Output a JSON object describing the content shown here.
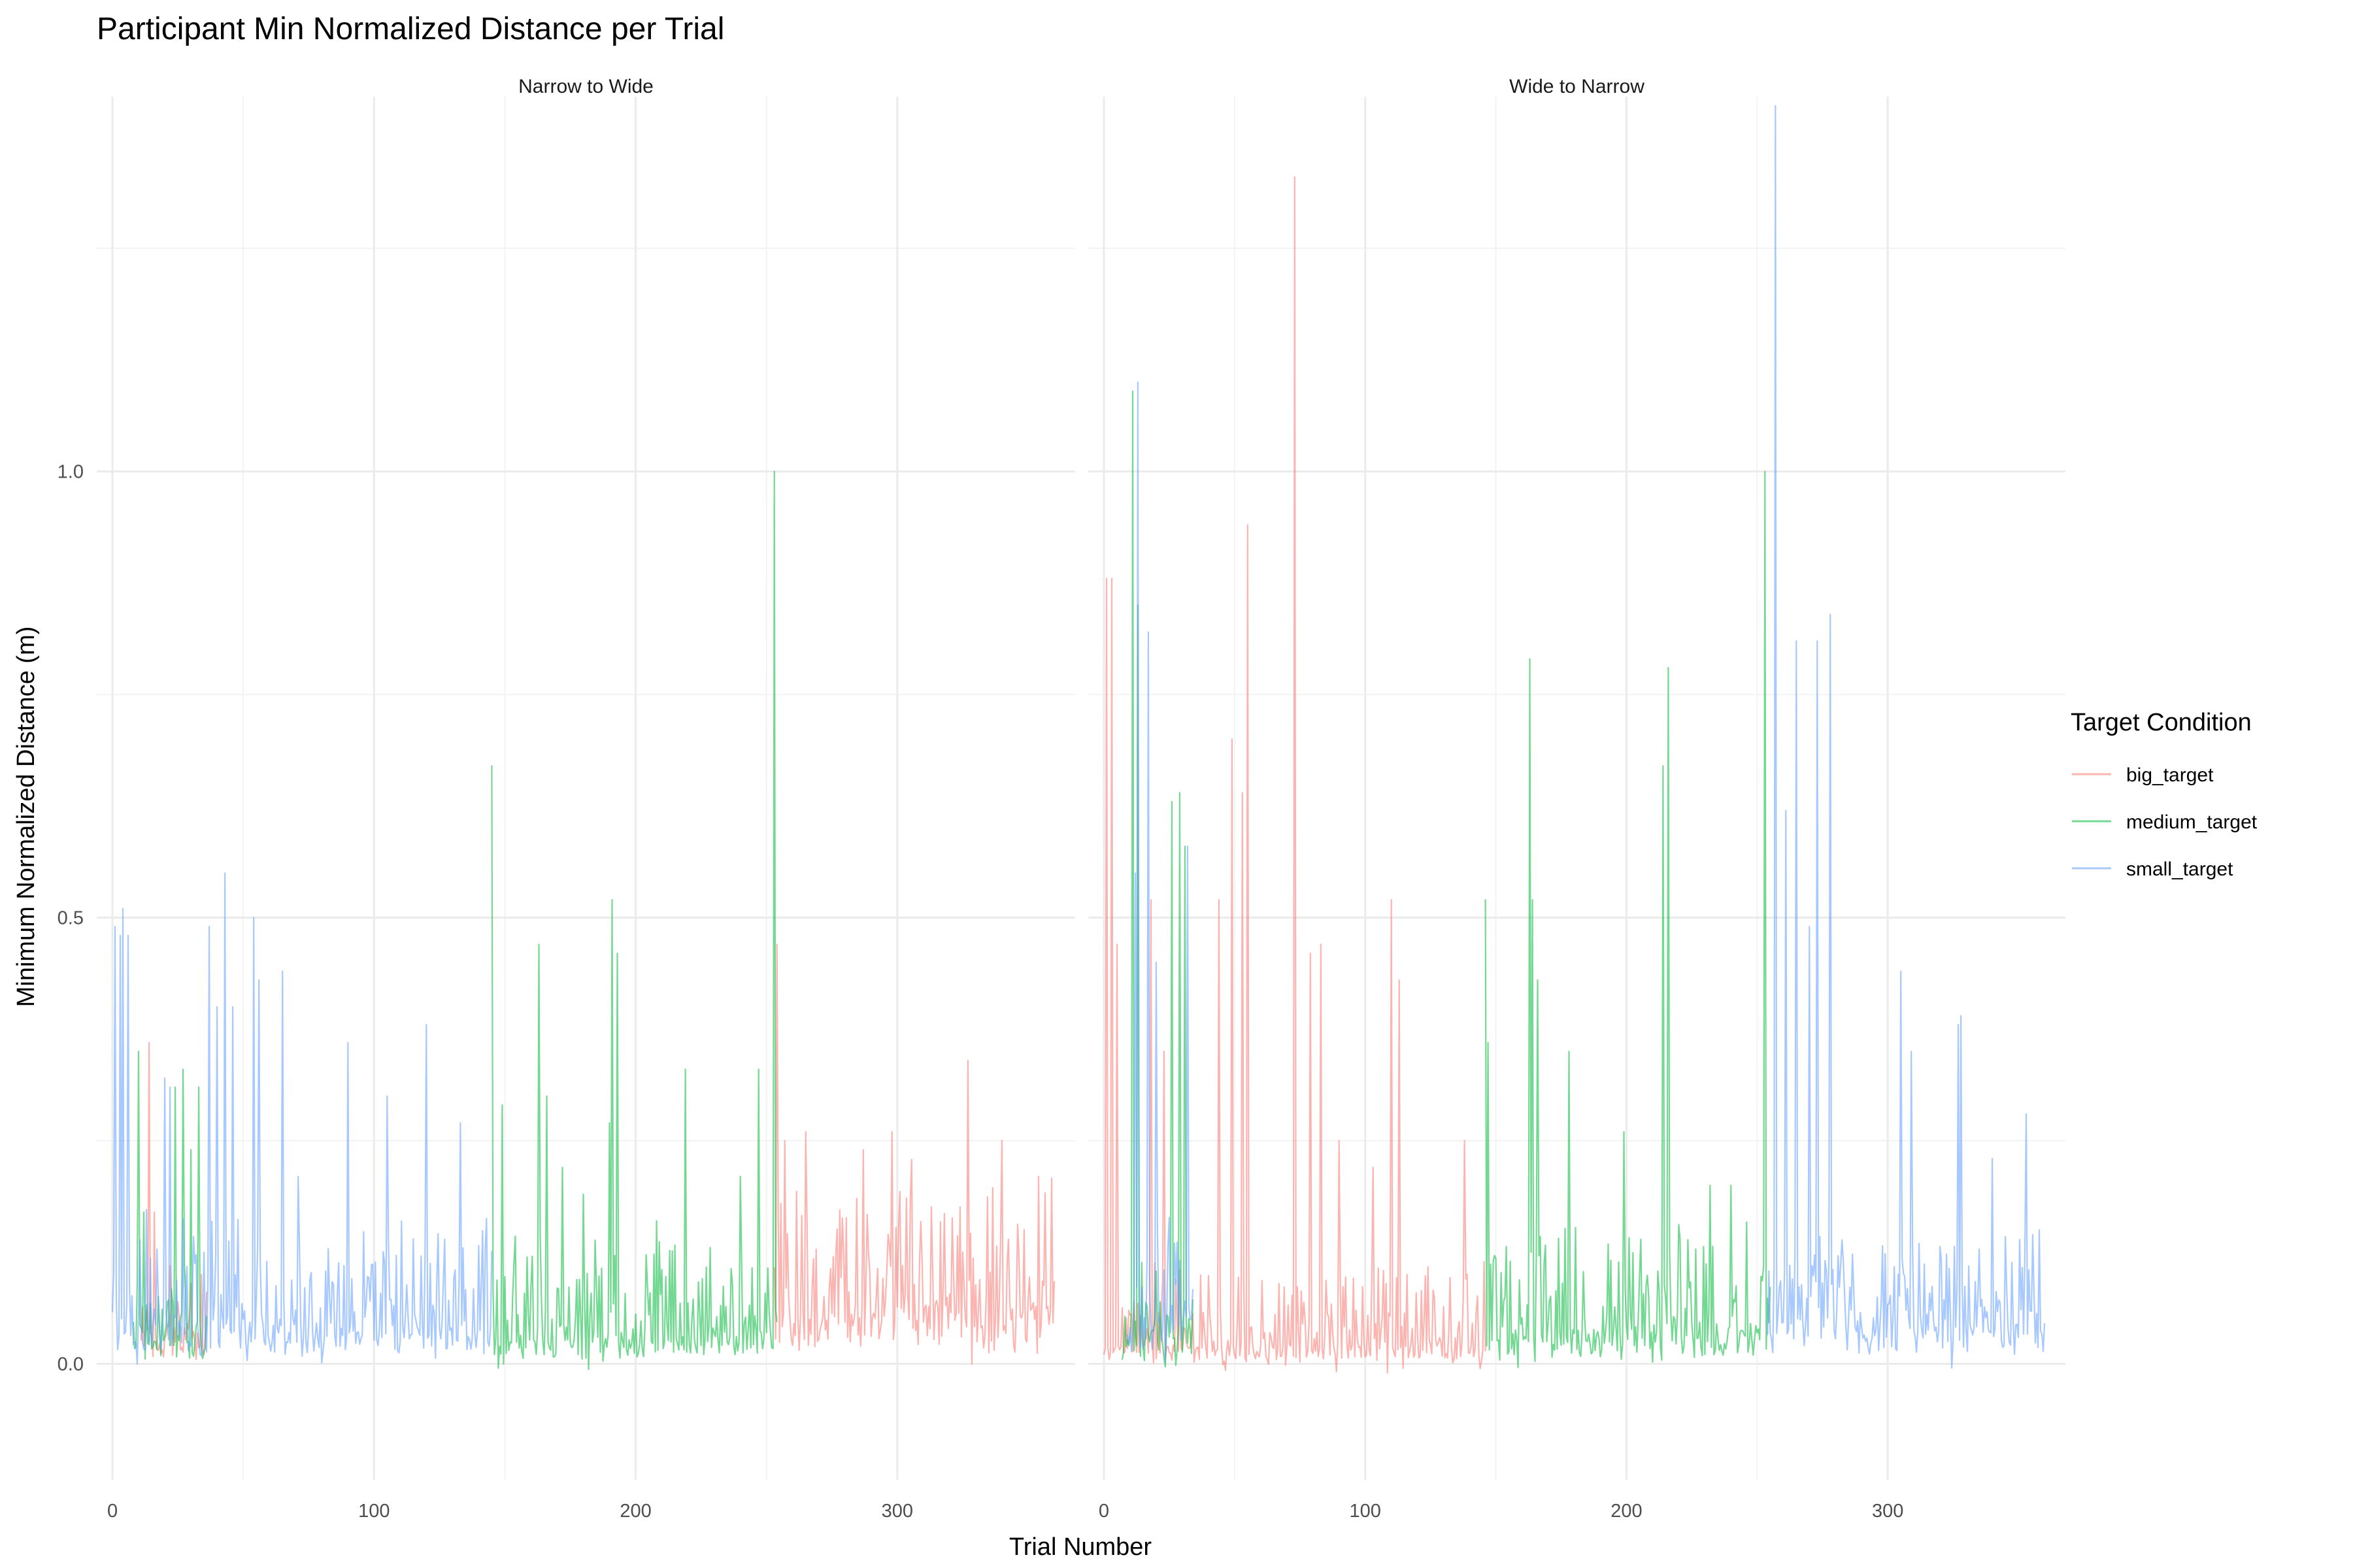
{
  "chart_data": {
    "type": "line",
    "title": "Participant Min Normalized Distance per Trial",
    "xlabel": "Trial Number",
    "ylabel": "Minimum Normalized Distance (m)",
    "xlim": [
      -6,
      368
    ],
    "ylim": [
      -0.13,
      1.42
    ],
    "x_ticks": [
      0,
      100,
      200,
      300
    ],
    "y_ticks": [
      0.0,
      0.5,
      1.0
    ],
    "y_tick_labels": [
      "0.0",
      "0.5",
      "1.0"
    ],
    "grid": true,
    "legend": {
      "title": "Target Condition",
      "position": "right",
      "entries": [
        "big_target",
        "medium_target",
        "small_target"
      ]
    },
    "colors": {
      "big_target": "#F8766D",
      "medium_target": "#00BA38",
      "small_target": "#619CFF"
    },
    "line_opacity": 0.55,
    "panels": [
      {
        "strip": "Narrow to Wide",
        "series": [
          {
            "name": "big_target",
            "segments": [
              {
                "x_start": 11,
                "x_end": 36,
                "base": 0.03,
                "noise": 0.06,
                "spikes": [
                  [
                    14,
                    0.36
                  ],
                  [
                    16,
                    0.17
                  ],
                  [
                    22,
                    0.11
                  ],
                  [
                    30,
                    0.09
                  ],
                  [
                    34,
                    0.1
                  ]
                ]
              },
              {
                "x_start": 253,
                "x_end": 360,
                "base": 0.05,
                "noise": 0.17,
                "spikes": [
                  [
                    254,
                    0.47
                  ],
                  [
                    257,
                    0.25
                  ],
                  [
                    265,
                    0.26
                  ],
                  [
                    287,
                    0.24
                  ],
                  [
                    298,
                    0.26
                  ],
                  [
                    327,
                    0.34
                  ],
                  [
                    340,
                    0.25
                  ],
                  [
                    354,
                    0.21
                  ]
                ]
              }
            ]
          },
          {
            "name": "medium_target",
            "segments": [
              {
                "x_start": 8,
                "x_end": 36,
                "base": 0.03,
                "noise": 0.08,
                "spikes": [
                  [
                    10,
                    0.35
                  ],
                  [
                    12,
                    0.17
                  ],
                  [
                    24,
                    0.31
                  ],
                  [
                    27,
                    0.33
                  ],
                  [
                    30,
                    0.24
                  ],
                  [
                    33,
                    0.31
                  ]
                ]
              },
              {
                "x_start": 145,
                "x_end": 254,
                "base": 0.025,
                "noise": 0.12,
                "spikes": [
                  [
                    145,
                    0.67
                  ],
                  [
                    149,
                    0.29
                  ],
                  [
                    163,
                    0.47
                  ],
                  [
                    166,
                    0.3
                  ],
                  [
                    172,
                    0.22
                  ],
                  [
                    180,
                    0.19
                  ],
                  [
                    190,
                    0.27
                  ],
                  [
                    191,
                    0.52
                  ],
                  [
                    193,
                    0.46
                  ],
                  [
                    208,
                    0.16
                  ],
                  [
                    219,
                    0.33
                  ],
                  [
                    240,
                    0.21
                  ],
                  [
                    247,
                    0.33
                  ],
                  [
                    253,
                    1.0
                  ]
                ]
              }
            ]
          },
          {
            "name": "small_target",
            "segments": [
              {
                "x_start": 0,
                "x_end": 145,
                "base": 0.035,
                "noise": 0.14,
                "spikes": [
                  [
                    1,
                    0.49
                  ],
                  [
                    3,
                    0.48
                  ],
                  [
                    4,
                    0.51
                  ],
                  [
                    6,
                    0.48
                  ],
                  [
                    20,
                    0.32
                  ],
                  [
                    22,
                    0.31
                  ],
                  [
                    37,
                    0.49
                  ],
                  [
                    40,
                    0.4
                  ],
                  [
                    43,
                    0.55
                  ],
                  [
                    46,
                    0.4
                  ],
                  [
                    54,
                    0.5
                  ],
                  [
                    56,
                    0.43
                  ],
                  [
                    65,
                    0.44
                  ],
                  [
                    71,
                    0.21
                  ],
                  [
                    90,
                    0.36
                  ],
                  [
                    105,
                    0.3
                  ],
                  [
                    120,
                    0.38
                  ],
                  [
                    133,
                    0.27
                  ]
                ]
              }
            ]
          }
        ]
      },
      {
        "strip": "Wide to Narrow",
        "series": [
          {
            "name": "big_target",
            "segments": [
              {
                "x_start": 0,
                "x_end": 146,
                "base": 0.015,
                "noise": 0.1,
                "spikes": [
                  [
                    1,
                    0.88
                  ],
                  [
                    3,
                    0.88
                  ],
                  [
                    5,
                    0.47
                  ],
                  [
                    18,
                    0.52
                  ],
                  [
                    23,
                    0.35
                  ],
                  [
                    44,
                    0.52
                  ],
                  [
                    49,
                    0.7
                  ],
                  [
                    53,
                    0.64
                  ],
                  [
                    55,
                    0.94
                  ],
                  [
                    73,
                    1.33
                  ],
                  [
                    79,
                    0.46
                  ],
                  [
                    83,
                    0.47
                  ],
                  [
                    90,
                    0.25
                  ],
                  [
                    103,
                    0.22
                  ],
                  [
                    110,
                    0.52
                  ],
                  [
                    113,
                    0.43
                  ],
                  [
                    138,
                    0.25
                  ]
                ]
              }
            ]
          },
          {
            "name": "medium_target",
            "segments": [
              {
                "x_start": 7,
                "x_end": 34,
                "base": 0.03,
                "noise": 0.1,
                "spikes": [
                  [
                    11,
                    1.09
                  ],
                  [
                    13,
                    0.85
                  ],
                  [
                    26,
                    0.63
                  ],
                  [
                    29,
                    0.64
                  ],
                  [
                    31,
                    0.58
                  ]
                ]
              },
              {
                "x_start": 146,
                "x_end": 255,
                "base": 0.03,
                "noise": 0.13,
                "spikes": [
                  [
                    146,
                    0.52
                  ],
                  [
                    147,
                    0.36
                  ],
                  [
                    163,
                    0.79
                  ],
                  [
                    164,
                    0.52
                  ],
                  [
                    166,
                    0.43
                  ],
                  [
                    178,
                    0.35
                  ],
                  [
                    199,
                    0.26
                  ],
                  [
                    214,
                    0.67
                  ],
                  [
                    216,
                    0.78
                  ],
                  [
                    232,
                    0.2
                  ],
                  [
                    240,
                    0.2
                  ],
                  [
                    253,
                    1.0
                  ]
                ]
              }
            ]
          },
          {
            "name": "small_target",
            "segments": [
              {
                "x_start": 9,
                "x_end": 34,
                "base": 0.04,
                "noise": 0.12,
                "spikes": [
                  [
                    12,
                    0.55
                  ],
                  [
                    13,
                    1.1
                  ],
                  [
                    17,
                    0.82
                  ],
                  [
                    20,
                    0.45
                  ],
                  [
                    32,
                    0.58
                  ]
                ]
              },
              {
                "x_start": 254,
                "x_end": 360,
                "base": 0.04,
                "noise": 0.13,
                "spikes": [
                  [
                    253,
                    1.22
                  ],
                  [
                    257,
                    1.41
                  ],
                  [
                    261,
                    0.62
                  ],
                  [
                    265,
                    0.81
                  ],
                  [
                    270,
                    0.49
                  ],
                  [
                    273,
                    0.81
                  ],
                  [
                    278,
                    0.84
                  ],
                  [
                    305,
                    0.44
                  ],
                  [
                    309,
                    0.35
                  ],
                  [
                    327,
                    0.38
                  ],
                  [
                    328,
                    0.39
                  ],
                  [
                    340,
                    0.23
                  ],
                  [
                    353,
                    0.28
                  ],
                  [
                    358,
                    0.15
                  ]
                ]
              }
            ]
          }
        ]
      }
    ]
  }
}
